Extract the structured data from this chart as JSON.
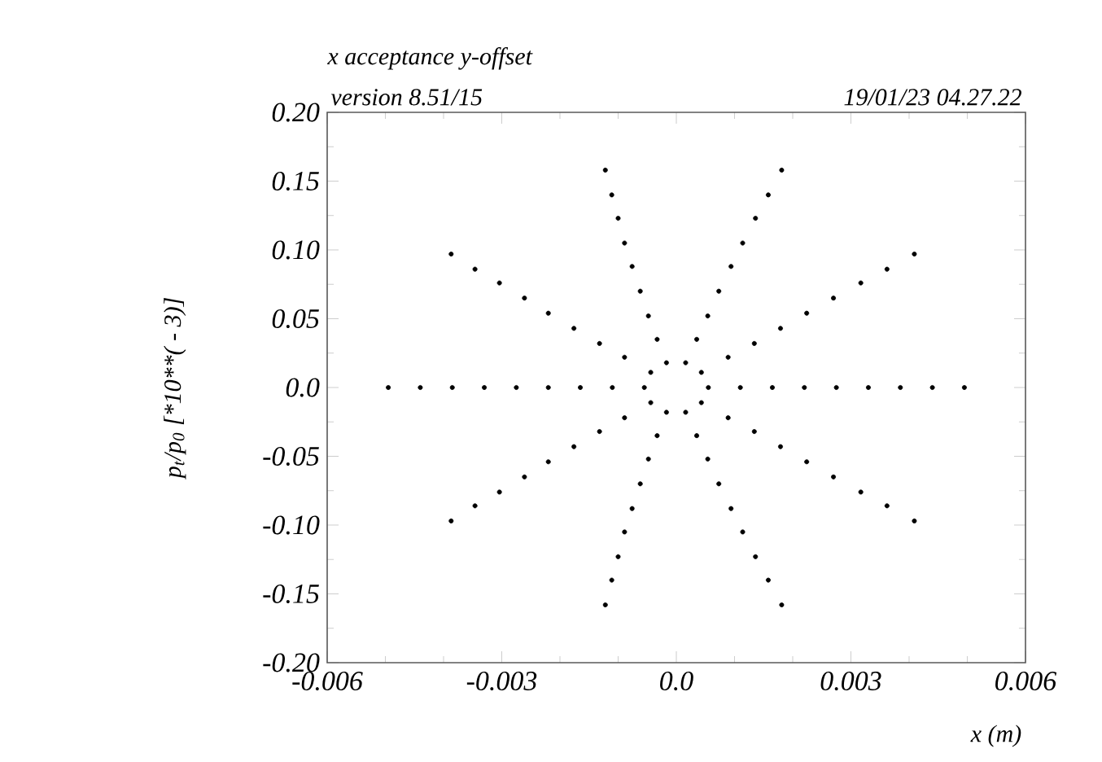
{
  "chart_data": {
    "type": "scatter",
    "title": "x acceptance y-offset",
    "xlabel": "x (m)",
    "ylabel": "p$_{t}$/p$_{0}$    [*10**( - 3)]",
    "annotations": [
      "version 8.51/15",
      "19/01/23  04.27.22"
    ],
    "xlim": [
      -0.006,
      0.006
    ],
    "ylim": [
      -0.2,
      0.2
    ],
    "xticks": [
      {
        "value": -0.006,
        "label": "-0.006"
      },
      -0.003,
      {
        "value": 0,
        "label": "0.0"
      },
      0.003,
      0.006
    ],
    "yticks": [
      {
        "value": -0.2,
        "label": "-0.20"
      },
      -0.15,
      {
        "value": -0.1,
        "label": "-0.10"
      },
      -0.05,
      {
        "value": 0,
        "label": "0.0"
      },
      0.05,
      {
        "value": 0.1,
        "label": "0.10"
      },
      0.15,
      {
        "value": 0.2,
        "label": "0.20"
      }
    ],
    "marker": "circle",
    "grid": false,
    "series": [
      {
        "color": "#000000",
        "x": [
          -0.00495,
          -0.0044,
          -0.00385,
          -0.0033,
          -0.00275,
          -0.0022,
          -0.00165,
          -0.0011,
          -0.00055,
          0.00055,
          0.0011,
          0.00165,
          0.0022,
          0.00275,
          0.0033,
          0.00385,
          0.0044,
          0.00495,
          -0.00387,
          -0.00346,
          -0.00304,
          -0.00261,
          -0.0022,
          -0.00176,
          -0.00132,
          -0.00089,
          -0.00044,
          -0.00387,
          -0.00346,
          -0.00304,
          -0.00261,
          -0.0022,
          -0.00176,
          -0.00132,
          -0.00089,
          -0.00044,
          0.00409,
          0.00362,
          0.00317,
          0.0027,
          0.00224,
          0.00179,
          0.00134,
          0.00089,
          0.00043,
          0.00409,
          0.00362,
          0.00317,
          0.0027,
          0.00224,
          0.00179,
          0.00134,
          0.00089,
          0.00043,
          -0.00122,
          -0.00111,
          -0.001,
          -0.00089,
          -0.00076,
          -0.00062,
          -0.00048,
          -0.00033,
          -0.00017,
          -0.00122,
          -0.00111,
          -0.001,
          -0.00089,
          -0.00076,
          -0.00062,
          -0.00048,
          -0.00033,
          -0.00017,
          0.00181,
          0.00158,
          0.00136,
          0.00114,
          0.00094,
          0.00073,
          0.00054,
          0.00035,
          0.00016,
          0.00181,
          0.00158,
          0.00136,
          0.00114,
          0.00094,
          0.00073,
          0.00054,
          0.00035,
          0.00016
        ],
        "values": [
          0,
          0,
          0,
          0,
          0,
          0,
          0,
          0,
          0,
          0,
          0,
          0,
          0,
          0,
          0,
          0,
          0,
          0,
          0.097,
          0.086,
          0.076,
          0.065,
          0.054,
          0.043,
          0.032,
          0.022,
          0.011,
          -0.097,
          -0.086,
          -0.076,
          -0.065,
          -0.054,
          -0.043,
          -0.032,
          -0.022,
          -0.011,
          0.097,
          0.086,
          0.076,
          0.065,
          0.054,
          0.043,
          0.032,
          0.022,
          0.011,
          -0.097,
          -0.086,
          -0.076,
          -0.065,
          -0.054,
          -0.043,
          -0.032,
          -0.022,
          -0.011,
          0.158,
          0.14,
          0.123,
          0.105,
          0.088,
          0.07,
          0.052,
          0.035,
          0.018,
          -0.158,
          -0.14,
          -0.123,
          -0.105,
          -0.088,
          -0.07,
          -0.052,
          -0.035,
          -0.018,
          0.158,
          0.14,
          0.123,
          0.105,
          0.088,
          0.07,
          0.052,
          0.035,
          0.018,
          -0.158,
          -0.14,
          -0.123,
          -0.105,
          -0.088,
          -0.07,
          -0.052,
          -0.035,
          -0.018
        ]
      }
    ]
  }
}
